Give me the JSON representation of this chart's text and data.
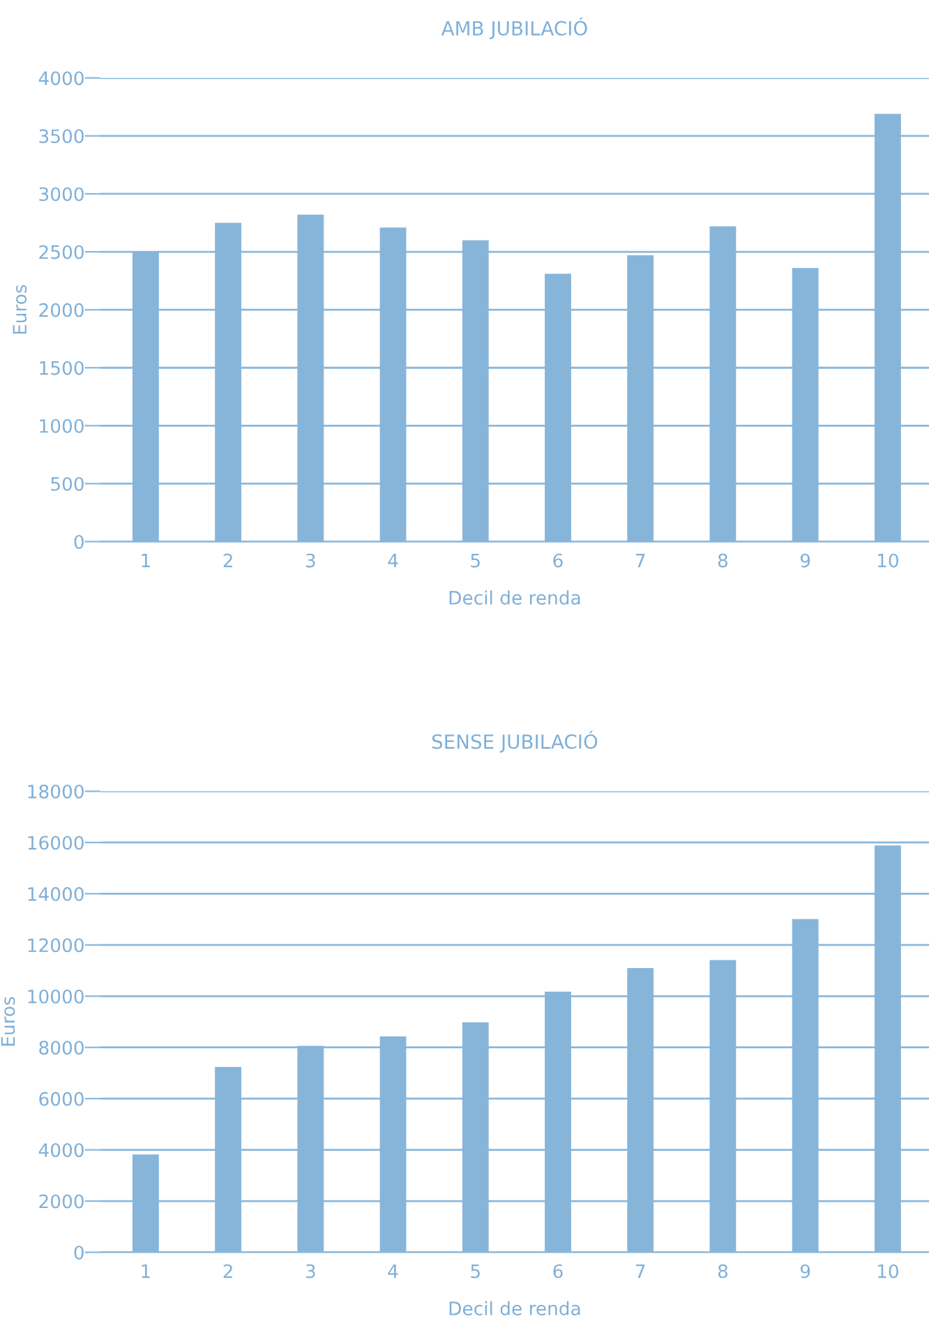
{
  "chart_data": [
    {
      "type": "bar",
      "title": "AMB JUBILACIÓ",
      "xlabel": "Decil de renda",
      "ylabel": "Euros",
      "categories": [
        "1",
        "2",
        "3",
        "4",
        "5",
        "6",
        "7",
        "8",
        "9",
        "10"
      ],
      "values": [
        2500,
        2750,
        2820,
        2710,
        2600,
        2310,
        2470,
        2720,
        2360,
        3690
      ],
      "color": "#87b5da",
      "ylim": [
        0,
        4000
      ],
      "yticks": [
        0,
        500,
        1000,
        1500,
        2000,
        2500,
        3000,
        3500,
        4000
      ],
      "grid": "y",
      "legend": false
    },
    {
      "type": "bar",
      "title": "SENSE JUBILACIÓ",
      "xlabel": "Decil de renda",
      "ylabel": "Euros",
      "categories": [
        "1",
        "2",
        "3",
        "4",
        "5",
        "6",
        "7",
        "8",
        "9",
        "10"
      ],
      "values": [
        3820,
        7240,
        8060,
        8430,
        8980,
        10180,
        11100,
        11410,
        13010,
        15880
      ],
      "color": "#87b5da",
      "ylim": [
        0,
        18000
      ],
      "yticks": [
        0,
        2000,
        4000,
        6000,
        8000,
        10000,
        12000,
        14000,
        16000,
        18000
      ],
      "grid": "y",
      "legend": false
    }
  ]
}
